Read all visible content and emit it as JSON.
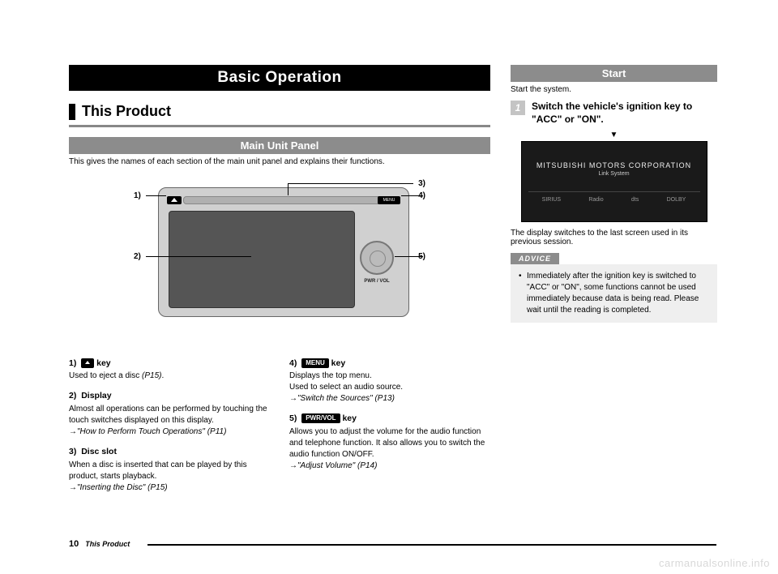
{
  "header": {
    "title": "Basic Operation"
  },
  "section": {
    "title": "This Product"
  },
  "mainUnit": {
    "subTitle": "Main Unit Panel",
    "desc": "This gives the names of each section of the main unit panel and explains their functions.",
    "callouts": {
      "c1": "1)",
      "c2": "2)",
      "c3": "3)",
      "c4": "4)",
      "c5": "5)"
    },
    "menuBtn": "MENU",
    "pwrLabel": "PWR / VOL"
  },
  "items": {
    "i1": {
      "num": "1)",
      "keyWord": "key",
      "desc": "Used to eject a disc ",
      "ref": "(P15)",
      "period": "."
    },
    "i2": {
      "num": "2)",
      "title": "Display",
      "desc": "Almost all operations can be performed by touching the touch switches displayed on this display.",
      "ref": "\"How to Perform Touch Operations\" (P11)"
    },
    "i3": {
      "num": "3)",
      "title": "Disc slot",
      "desc": "When a disc is inserted that can be played by this product, starts playback.",
      "ref": "\"Inserting the Disc\" (P15)"
    },
    "i4": {
      "num": "4)",
      "chip": "MENU",
      "keyWord": "key",
      "desc1": "Displays the top menu.",
      "desc2": "Used to select an audio source.",
      "ref": "\"Switch the Sources\" (P13)"
    },
    "i5": {
      "num": "5)",
      "chip": "PWR/VOL",
      "keyWord": "key",
      "desc": "Allows you to adjust the volume for the audio function and telephone function. It also allows you to switch the audio function ON/OFF.",
      "ref": "\"Adjust Volume\" (P14)"
    }
  },
  "start": {
    "title": "Start",
    "intro": "Start the system.",
    "stepNum": "1",
    "stepText": "Switch the vehicle's ignition key to \"ACC\" or \"ON\".",
    "tri": "▼",
    "shot": {
      "brand": "MITSUBISHI  MOTORS  CORPORATION",
      "link": "Link System",
      "sirius": "SIRIUS",
      "radio": "Radio",
      "dts": "dts",
      "dolby": "DOLBY"
    },
    "afterShot": "The display switches to the last screen used in its previous session.",
    "adviceLabel": "ADVICE",
    "advice": "Immediately after the ignition key is switched to \"ACC\" or \"ON\", some functions cannot be used immediately because data is being read. Please wait until the reading is completed."
  },
  "footer": {
    "page": "10",
    "title": "This Product"
  },
  "watermark": "carmanualsonline.info"
}
